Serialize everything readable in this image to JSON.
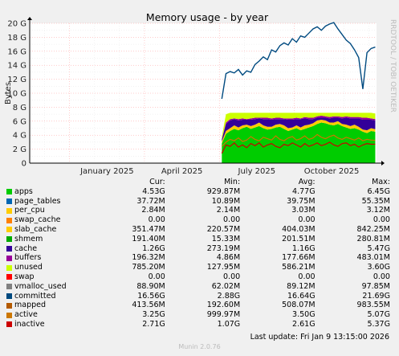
{
  "chart_data": {
    "type": "area",
    "title": "Memory usage - by year",
    "ylabel": "Bytes",
    "side_label": "RRDTOOL / TOBI OETIKER",
    "ylim": [
      0,
      20
    ],
    "y_ticks": [
      "0",
      "2 G",
      "4 G",
      "6 G",
      "8 G",
      "10 G",
      "12 G",
      "14 G",
      "16 G",
      "18 G",
      "20 G"
    ],
    "x_ticks": [
      "January 2025",
      "April 2025",
      "July 2025",
      "October 2025"
    ],
    "x_tick_months": [
      0,
      3,
      6,
      9
    ],
    "x_range_months": [
      -1.6,
      12.3
    ],
    "data_start_month": 6.1,
    "grid": true,
    "committed_gb": [
      9.2,
      12.8,
      13.1,
      12.9,
      13.4,
      12.6,
      13.2,
      13.0,
      14.1,
      14.6,
      15.2,
      14.8,
      16.2,
      15.9,
      16.8,
      17.2,
      16.9,
      17.8,
      17.3,
      18.2,
      18.0,
      18.6,
      19.2,
      19.5,
      19.0,
      19.6,
      19.9,
      20.1,
      19.2,
      18.4,
      17.6,
      17.1,
      16.2,
      15.1,
      10.6,
      15.8,
      16.4,
      16.6
    ],
    "stack_gb": [
      {
        "name": "apps",
        "color": "#00cc00",
        "values": [
          2.8,
          4.2,
          4.6,
          4.9,
          4.7,
          5.0,
          5.2,
          4.9,
          5.1,
          5.3,
          5.0,
          4.8,
          4.9,
          5.1,
          5.2,
          4.9,
          4.6,
          4.8,
          5.0,
          4.7,
          4.9,
          5.1,
          5.3,
          5.6,
          5.8,
          5.7,
          5.5,
          5.4,
          5.6,
          5.3,
          5.1,
          4.9,
          5.0,
          4.8,
          4.5,
          4.3,
          4.6,
          4.5
        ]
      },
      {
        "name": "slab_cache",
        "color": "#ffcc00",
        "values": [
          0.3,
          0.4,
          0.4,
          0.5,
          0.4,
          0.4,
          0.3,
          0.4,
          0.4,
          0.5,
          0.4,
          0.4,
          0.3,
          0.4,
          0.4,
          0.5,
          0.4,
          0.3,
          0.4,
          0.4,
          0.5,
          0.4,
          0.4,
          0.5,
          0.4,
          0.4,
          0.3,
          0.4,
          0.4,
          0.3,
          0.4,
          0.4,
          0.5,
          0.4,
          0.3,
          0.4,
          0.4,
          0.35
        ]
      },
      {
        "name": "cache",
        "color": "#330099",
        "values": [
          0.3,
          1.0,
          1.1,
          0.9,
          1.0,
          0.8,
          0.7,
          0.9,
          0.8,
          0.6,
          0.9,
          1.1,
          1.0,
          0.8,
          0.7,
          0.9,
          1.2,
          1.1,
          0.9,
          1.2,
          1.0,
          0.8,
          0.6,
          0.4,
          0.3,
          0.4,
          0.6,
          0.7,
          0.5,
          0.8,
          1.0,
          1.1,
          0.9,
          1.2,
          1.4,
          1.5,
          1.2,
          1.26
        ]
      },
      {
        "name": "buffers",
        "color": "#990099",
        "values": [
          0.05,
          0.2,
          0.2,
          0.1,
          0.2,
          0.2,
          0.1,
          0.2,
          0.2,
          0.1,
          0.2,
          0.2,
          0.2,
          0.2,
          0.2,
          0.1,
          0.2,
          0.2,
          0.2,
          0.1,
          0.2,
          0.2,
          0.2,
          0.2,
          0.3,
          0.2,
          0.2,
          0.2,
          0.2,
          0.2,
          0.2,
          0.2,
          0.2,
          0.2,
          0.3,
          0.3,
          0.2,
          0.2
        ]
      },
      {
        "name": "unused",
        "color": "#ccff00",
        "values": [
          0.3,
          1.2,
          0.9,
          0.8,
          0.9,
          0.8,
          0.9,
          0.8,
          0.7,
          0.7,
          0.7,
          0.7,
          0.8,
          0.7,
          0.7,
          0.8,
          0.8,
          0.8,
          0.7,
          0.8,
          0.6,
          0.7,
          0.7,
          0.5,
          0.4,
          0.5,
          0.6,
          0.5,
          0.5,
          0.6,
          0.5,
          0.6,
          0.6,
          0.6,
          0.7,
          0.7,
          0.8,
          0.79
        ]
      }
    ],
    "lines_gb": [
      {
        "name": "active",
        "color": "#cc7700",
        "values": [
          2.4,
          3.0,
          3.4,
          3.2,
          3.6,
          3.1,
          3.3,
          3.8,
          3.4,
          3.2,
          3.7,
          3.5,
          3.3,
          3.9,
          3.4,
          3.2,
          3.6,
          3.8,
          3.3,
          3.5,
          3.9,
          3.4,
          3.6,
          4.1,
          3.7,
          3.5,
          3.8,
          4.0,
          3.6,
          3.4,
          3.7,
          3.5,
          3.3,
          3.6,
          3.2,
          3.4,
          3.3,
          3.25
        ]
      },
      {
        "name": "inactive",
        "color": "#cc0000",
        "values": [
          1.4,
          2.6,
          2.4,
          2.9,
          2.3,
          2.6,
          2.2,
          2.8,
          2.5,
          2.9,
          2.3,
          2.6,
          2.8,
          2.4,
          2.2,
          2.7,
          2.5,
          2.9,
          2.6,
          2.3,
          2.8,
          2.4,
          2.6,
          2.9,
          2.5,
          2.7,
          3.0,
          2.6,
          2.4,
          2.8,
          2.9,
          2.5,
          2.7,
          2.3,
          2.6,
          2.8,
          2.7,
          2.71
        ]
      }
    ]
  },
  "legend": {
    "headers": {
      "cur": "Cur:",
      "min": "Min:",
      "avg": "Avg:",
      "max": "Max:"
    },
    "rows": [
      {
        "name": "apps",
        "color": "#00cc00",
        "cur": "4.53G",
        "min": "929.87M",
        "avg": "4.77G",
        "max": "6.45G"
      },
      {
        "name": "page_tables",
        "color": "#0066b3",
        "cur": "37.72M",
        "min": "10.89M",
        "avg": "39.75M",
        "max": "55.35M"
      },
      {
        "name": "per_cpu",
        "color": "#ffcc00",
        "cur": "2.84M",
        "min": "2.14M",
        "avg": "3.03M",
        "max": "3.12M"
      },
      {
        "name": "swap_cache",
        "color": "#ff8000",
        "cur": "0.00",
        "min": "0.00",
        "avg": "0.00",
        "max": "0.00"
      },
      {
        "name": "slab_cache",
        "color": "#ffcc00",
        "cur": "351.47M",
        "min": "220.57M",
        "avg": "404.03M",
        "max": "842.25M"
      },
      {
        "name": "shmem",
        "color": "#00aa00",
        "cur": "191.40M",
        "min": "15.33M",
        "avg": "201.51M",
        "max": "280.81M"
      },
      {
        "name": "cache",
        "color": "#330099",
        "cur": "1.26G",
        "min": "273.19M",
        "avg": "1.16G",
        "max": "5.47G"
      },
      {
        "name": "buffers",
        "color": "#990099",
        "cur": "196.32M",
        "min": "4.86M",
        "avg": "177.66M",
        "max": "483.01M"
      },
      {
        "name": "unused",
        "color": "#ccff00",
        "cur": "785.20M",
        "min": "127.95M",
        "avg": "586.21M",
        "max": "3.60G"
      },
      {
        "name": "swap",
        "color": "#ff0000",
        "cur": "0.00",
        "min": "0.00",
        "avg": "0.00",
        "max": "0.00"
      },
      {
        "name": "vmalloc_used",
        "color": "#808080",
        "cur": "88.90M",
        "min": "62.02M",
        "avg": "89.12M",
        "max": "97.85M"
      },
      {
        "name": "committed",
        "color": "#004a80",
        "cur": "16.56G",
        "min": "2.88G",
        "avg": "16.64G",
        "max": "21.69G"
      },
      {
        "name": "mapped",
        "color": "#b35a00",
        "cur": "413.56M",
        "min": "192.60M",
        "avg": "508.07M",
        "max": "983.55M"
      },
      {
        "name": "active",
        "color": "#cc7700",
        "cur": "3.25G",
        "min": "999.97M",
        "avg": "3.50G",
        "max": "5.07G"
      },
      {
        "name": "inactive",
        "color": "#cc0000",
        "cur": "2.71G",
        "min": "1.07G",
        "avg": "2.61G",
        "max": "5.37G"
      }
    ]
  },
  "last_update": "Last update: Fri Jan  9 13:15:00 2026",
  "footer": "Munin 2.0.76"
}
